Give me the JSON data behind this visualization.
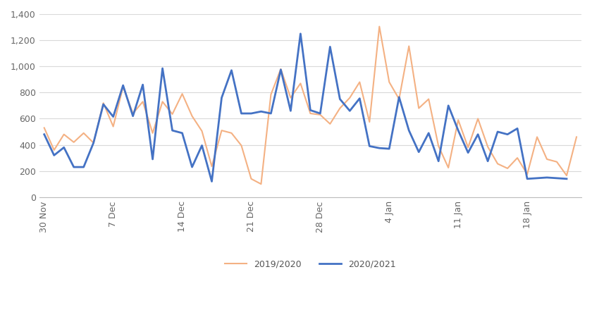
{
  "x_labels": [
    "30 Nov",
    "7 Dec",
    "14 Dec",
    "21 Dec",
    "28 Dec",
    "4 Jan",
    "11 Jan",
    "18 Jan"
  ],
  "tick_positions": [
    0,
    7,
    14,
    21,
    28,
    35,
    42,
    49
  ],
  "series_2019": [
    530,
    360,
    480,
    420,
    490,
    415,
    720,
    540,
    845,
    640,
    730,
    490,
    730,
    635,
    790,
    620,
    505,
    235,
    510,
    490,
    395,
    140,
    100,
    785,
    980,
    760,
    870,
    640,
    630,
    560,
    680,
    760,
    880,
    575,
    1305,
    880,
    750,
    1155,
    680,
    750,
    390,
    225,
    590,
    380,
    600,
    385,
    255,
    220,
    300,
    175,
    460,
    290,
    270,
    165,
    460
  ],
  "series_2020": [
    480,
    320,
    380,
    230,
    230,
    415,
    710,
    615,
    855,
    620,
    860,
    290,
    985,
    510,
    490,
    230,
    395,
    120,
    760,
    970,
    640,
    640,
    655,
    640,
    975,
    660,
    1250,
    665,
    640,
    1150,
    750,
    660,
    755,
    390,
    375,
    370,
    765,
    510,
    345,
    490,
    275,
    700,
    510,
    340,
    480,
    275,
    500,
    480,
    525,
    140,
    145,
    150,
    145,
    140
  ],
  "color_2019": "#f4b183",
  "color_2020": "#4472c4",
  "ylim": [
    0,
    1400
  ],
  "yticks": [
    0,
    200,
    400,
    600,
    800,
    1000,
    1200,
    1400
  ],
  "legend_2019": "2019/2020",
  "legend_2020": "2020/2021",
  "background_color": "#ffffff",
  "grid_color": "#d9d9d9"
}
